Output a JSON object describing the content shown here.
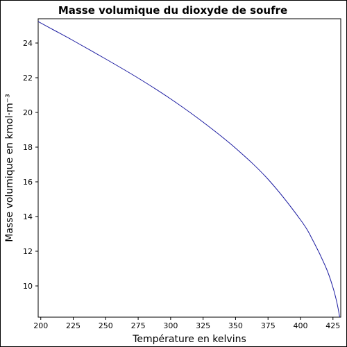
{
  "chart_data": {
    "type": "line",
    "title": "Masse volumique du dioxyde de soufre",
    "xlabel": "Température en kelvins",
    "ylabel": "Masse volumique en kmol·m⁻³",
    "xlim": [
      198,
      431
    ],
    "ylim": [
      8.2,
      25.4
    ],
    "xticks": [
      200,
      225,
      250,
      275,
      300,
      325,
      350,
      375,
      400,
      425
    ],
    "yticks": [
      10,
      12,
      14,
      16,
      18,
      20,
      22,
      24
    ],
    "grid": false,
    "legend": "none",
    "line_color": "#1a1aa0",
    "series": [
      {
        "x": [
          197.67,
          210,
          225,
          250,
          275,
          300,
          325,
          350,
          375,
          400,
          410,
          420,
          425,
          428,
          430,
          430.75
        ],
        "y": [
          25.25,
          24.75,
          24.14,
          23.08,
          21.98,
          20.78,
          19.44,
          17.94,
          16.15,
          13.81,
          12.56,
          10.99,
          9.91,
          9.05,
          8.28,
          7.9
        ]
      }
    ]
  }
}
